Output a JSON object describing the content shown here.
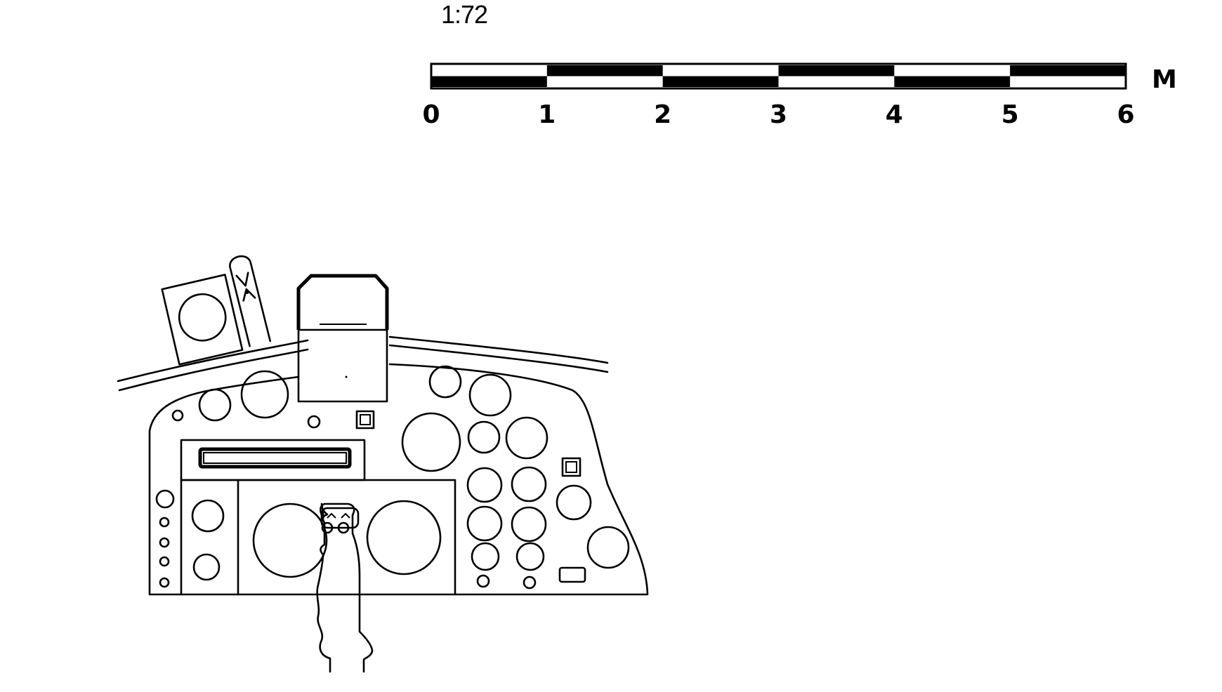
{
  "scale": {
    "ratio": "1:72",
    "unit": "M",
    "ticks": [
      "0",
      "1",
      "2",
      "3",
      "4",
      "5",
      "6"
    ],
    "colors": {
      "dark": "#000000",
      "light": "#ffffff"
    }
  },
  "drawing": {
    "subject": "cockpit-instrument-panel",
    "line_color": "#000000",
    "background": "#ffffff"
  }
}
